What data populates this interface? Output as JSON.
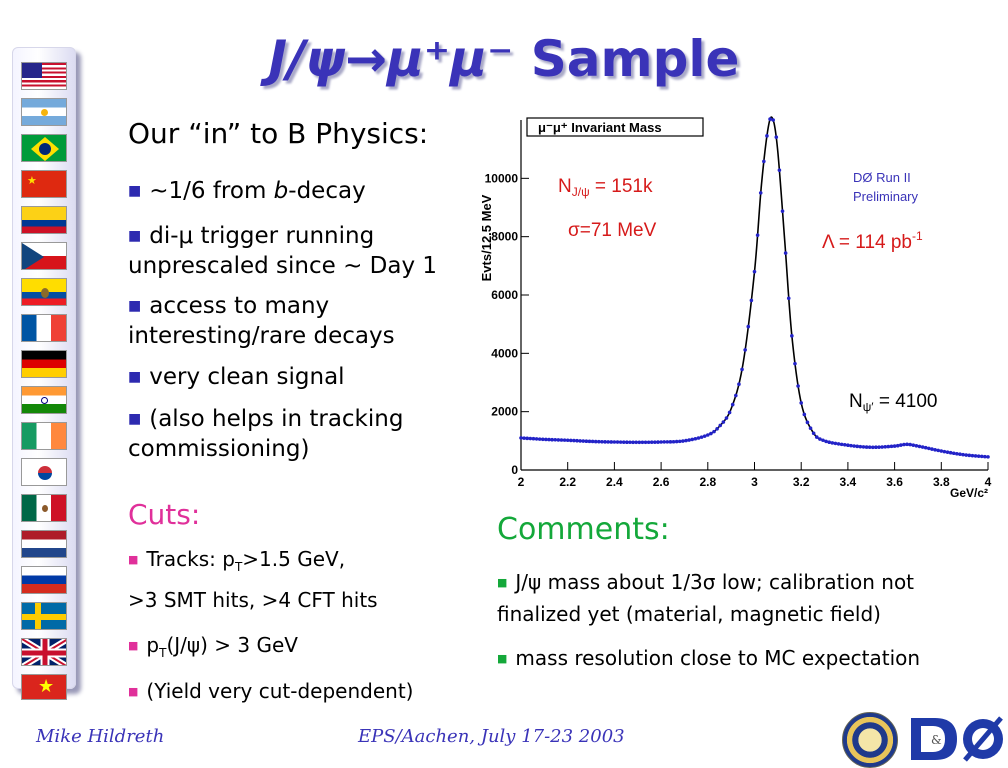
{
  "slide_title": {
    "psi": "J/ψ→μ⁺μ⁻",
    "rest": " Sample"
  },
  "left": {
    "heading": "Our “in” to B Physics:",
    "bullets": [
      {
        "pre": "~1/6 from ",
        "em": "b",
        "post": "-decay"
      },
      {
        "line1": "di-μ trigger running",
        "line2": "unprescaled since ~ Day 1"
      },
      {
        "line1": "access to many",
        "line2": "interesting/rare decays"
      },
      {
        "line1": "very clean signal"
      },
      {
        "line1": "(also helps in tracking",
        "line2": "commissioning)"
      }
    ]
  },
  "cuts": {
    "heading": "Cuts:",
    "items": [
      {
        "a": "Tracks: p",
        "sub": "T",
        "b": ">1.5 GeV,"
      },
      {
        "a": ">3 SMT hits, >4 CFT hits"
      },
      {
        "a": "p",
        "sub": "T",
        "b": "(J/ψ) > 3 GeV"
      },
      {
        "a": "(Yield very cut-dependent)"
      }
    ]
  },
  "comments": {
    "heading": "Comments:",
    "items": [
      {
        "line1": "J/ψ mass about 1/3σ low; calibration not",
        "line2": "finalized yet (material, magnetic field)"
      },
      {
        "line1": "mass resolution close to MC expectation"
      }
    ]
  },
  "chart_data": {
    "type": "line",
    "title": "μ⁻μ⁺ Invariant Mass",
    "xlabel": "GeV/c²",
    "ylabel": "Evts/12.5 MeV",
    "xlim": [
      2,
      4
    ],
    "ylim": [
      0,
      12000
    ],
    "xticks": [
      "2",
      "2.2",
      "2.4",
      "2.6",
      "2.8",
      "3",
      "3.2",
      "3.4",
      "3.6",
      "3.8",
      "4"
    ],
    "yticks": [
      "0",
      "2000",
      "4000",
      "6000",
      "8000",
      "10000"
    ],
    "annotations": {
      "njpsi_a": "N",
      "njpsi_sub": "J/ψ",
      "njpsi_b": " = 151k",
      "sigma": "σ=71 MeV",
      "run_line1": "DØ Run II",
      "run_line2": "Preliminary",
      "lumi_a": "Λ = 114 pb",
      "lumi_sup": "-1",
      "npsip_a": "N",
      "npsip_sub": "ψ′",
      "npsip_b": " = 4100"
    },
    "series": [
      {
        "x": [
          2.0,
          2.1,
          2.2,
          2.3,
          2.4,
          2.5,
          2.6,
          2.7,
          2.8,
          2.85,
          2.9,
          2.95,
          3.0,
          3.03,
          3.06,
          3.08,
          3.1,
          3.13,
          3.16,
          3.2,
          3.25,
          3.3,
          3.4,
          3.5,
          3.6,
          3.65,
          3.7,
          3.8,
          3.9,
          4.0
        ],
        "y": [
          1100,
          1050,
          1020,
          980,
          960,
          950,
          960,
          1000,
          1200,
          1500,
          2100,
          3600,
          6800,
          9800,
          11800,
          12000,
          10900,
          7800,
          4600,
          2300,
          1300,
          1000,
          850,
          780,
          820,
          880,
          820,
          650,
          520,
          450
        ]
      }
    ],
    "grid": false
  },
  "footer": {
    "author": "Mike Hildreth",
    "conference": "EPS/Aachen, July 17-23 2003"
  },
  "colors": {
    "title": "#3a33b8",
    "cuts": "#e0309a",
    "comments": "#14a83a",
    "annot": "#d61a1a",
    "curve": "#2323c8"
  }
}
